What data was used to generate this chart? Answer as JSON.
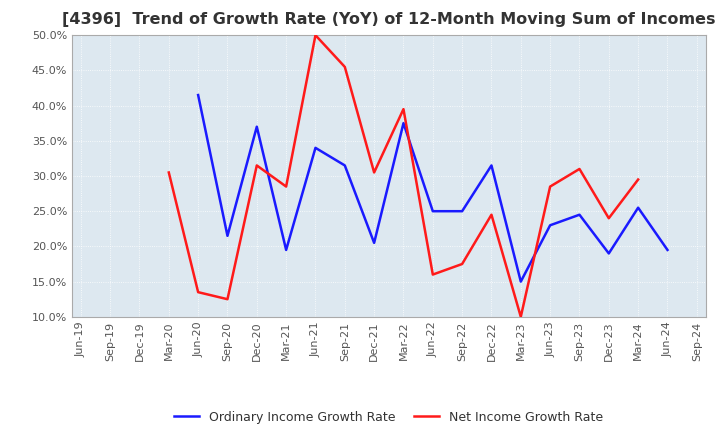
{
  "title": "[4396]  Trend of Growth Rate (YoY) of 12-Month Moving Sum of Incomes",
  "x_labels": [
    "Jun-19",
    "Sep-19",
    "Dec-19",
    "Mar-20",
    "Jun-20",
    "Sep-20",
    "Dec-20",
    "Mar-21",
    "Jun-21",
    "Sep-21",
    "Dec-21",
    "Mar-22",
    "Jun-22",
    "Sep-22",
    "Dec-22",
    "Mar-23",
    "Jun-23",
    "Sep-23",
    "Dec-23",
    "Mar-24",
    "Jun-24",
    "Sep-24"
  ],
  "ordinary_income": [
    null,
    null,
    null,
    null,
    41.5,
    21.5,
    37.0,
    19.5,
    34.0,
    31.5,
    20.5,
    37.5,
    25.0,
    25.0,
    31.5,
    15.0,
    23.0,
    24.5,
    19.0,
    25.5,
    19.5,
    null
  ],
  "net_income": [
    null,
    null,
    null,
    30.5,
    13.5,
    12.5,
    31.5,
    28.5,
    50.0,
    45.5,
    30.5,
    39.5,
    16.0,
    17.5,
    24.5,
    10.0,
    28.5,
    31.0,
    24.0,
    29.5,
    null,
    null
  ],
  "ylim": [
    10.0,
    50.0
  ],
  "yticks": [
    10.0,
    15.0,
    20.0,
    25.0,
    30.0,
    35.0,
    40.0,
    45.0,
    50.0
  ],
  "ordinary_color": "#1a1aff",
  "net_color": "#ff1a1a",
  "plot_bg_color": "#dde8f0",
  "fig_bg_color": "#ffffff",
  "grid_color": "#ffffff",
  "title_color": "#333333",
  "legend_ordinary": "Ordinary Income Growth Rate",
  "legend_net": "Net Income Growth Rate",
  "title_fontsize": 11.5,
  "axis_fontsize": 8,
  "tick_color": "#555555"
}
